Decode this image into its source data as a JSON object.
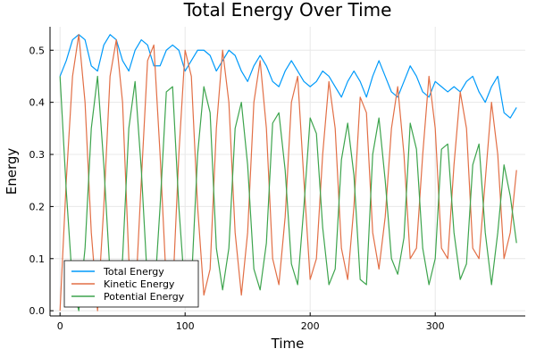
{
  "chart_data": {
    "type": "line",
    "title": "Total Energy Over Time",
    "xlabel": "Time",
    "ylabel": "Energy",
    "xlim": [
      -8,
      372
    ],
    "ylim": [
      -0.01,
      0.545
    ],
    "xticks": [
      0,
      100,
      200,
      300
    ],
    "xtick_labels": [
      "0",
      "100",
      "200",
      "300"
    ],
    "yticks": [
      0.0,
      0.1,
      0.2,
      0.3,
      0.4,
      0.5
    ],
    "ytick_labels": [
      "0.0",
      "0.1",
      "0.2",
      "0.3",
      "0.4",
      "0.5"
    ],
    "grid": true,
    "legend_position": "bottom-left",
    "x": [
      0,
      5,
      10,
      15,
      20,
      25,
      30,
      35,
      40,
      45,
      50,
      55,
      60,
      65,
      70,
      75,
      80,
      85,
      90,
      95,
      100,
      105,
      110,
      115,
      120,
      125,
      130,
      135,
      140,
      145,
      150,
      155,
      160,
      165,
      170,
      175,
      180,
      185,
      190,
      195,
      200,
      205,
      210,
      215,
      220,
      225,
      230,
      235,
      240,
      245,
      250,
      255,
      260,
      265,
      270,
      275,
      280,
      285,
      290,
      295,
      300,
      305,
      310,
      315,
      320,
      325,
      330,
      335,
      340,
      345,
      350,
      355,
      360,
      365
    ],
    "series": [
      {
        "name": "Total Energy",
        "color": "#009AFA",
        "values": [
          0.45,
          0.48,
          0.52,
          0.53,
          0.52,
          0.47,
          0.46,
          0.51,
          0.53,
          0.52,
          0.48,
          0.46,
          0.5,
          0.52,
          0.51,
          0.47,
          0.47,
          0.5,
          0.51,
          0.5,
          0.46,
          0.48,
          0.5,
          0.5,
          0.49,
          0.46,
          0.48,
          0.5,
          0.49,
          0.46,
          0.44,
          0.47,
          0.49,
          0.47,
          0.44,
          0.43,
          0.46,
          0.48,
          0.46,
          0.44,
          0.43,
          0.44,
          0.46,
          0.45,
          0.43,
          0.41,
          0.44,
          0.46,
          0.44,
          0.41,
          0.45,
          0.48,
          0.45,
          0.42,
          0.41,
          0.44,
          0.47,
          0.45,
          0.42,
          0.41,
          0.44,
          0.43,
          0.42,
          0.43,
          0.42,
          0.44,
          0.45,
          0.42,
          0.4,
          0.43,
          0.45,
          0.38,
          0.37,
          0.39
        ]
      },
      {
        "name": "Kinetic Energy",
        "color": "#E26F46",
        "values": [
          0.0,
          0.25,
          0.45,
          0.53,
          0.4,
          0.15,
          0.0,
          0.2,
          0.45,
          0.52,
          0.4,
          0.1,
          0.01,
          0.25,
          0.48,
          0.51,
          0.3,
          0.05,
          0.03,
          0.3,
          0.5,
          0.45,
          0.2,
          0.03,
          0.08,
          0.35,
          0.5,
          0.4,
          0.15,
          0.03,
          0.15,
          0.4,
          0.48,
          0.35,
          0.1,
          0.05,
          0.18,
          0.4,
          0.45,
          0.25,
          0.06,
          0.1,
          0.3,
          0.44,
          0.35,
          0.12,
          0.06,
          0.2,
          0.41,
          0.38,
          0.15,
          0.08,
          0.18,
          0.35,
          0.43,
          0.3,
          0.1,
          0.12,
          0.3,
          0.45,
          0.35,
          0.12,
          0.1,
          0.28,
          0.42,
          0.35,
          0.12,
          0.1,
          0.25,
          0.4,
          0.3,
          0.1,
          0.15,
          0.27
        ]
      },
      {
        "name": "Potential Energy",
        "color": "#3DA44D",
        "values": [
          0.45,
          0.23,
          0.05,
          0.0,
          0.12,
          0.35,
          0.45,
          0.28,
          0.07,
          0.01,
          0.1,
          0.35,
          0.44,
          0.27,
          0.05,
          0.01,
          0.2,
          0.42,
          0.43,
          0.2,
          0.03,
          0.05,
          0.3,
          0.43,
          0.38,
          0.12,
          0.04,
          0.12,
          0.35,
          0.4,
          0.28,
          0.08,
          0.04,
          0.13,
          0.36,
          0.38,
          0.27,
          0.09,
          0.05,
          0.2,
          0.37,
          0.34,
          0.16,
          0.05,
          0.08,
          0.29,
          0.36,
          0.26,
          0.06,
          0.05,
          0.3,
          0.37,
          0.25,
          0.1,
          0.07,
          0.14,
          0.36,
          0.31,
          0.12,
          0.05,
          0.1,
          0.31,
          0.32,
          0.15,
          0.06,
          0.09,
          0.28,
          0.32,
          0.15,
          0.05,
          0.15,
          0.28,
          0.22,
          0.13
        ]
      }
    ]
  }
}
